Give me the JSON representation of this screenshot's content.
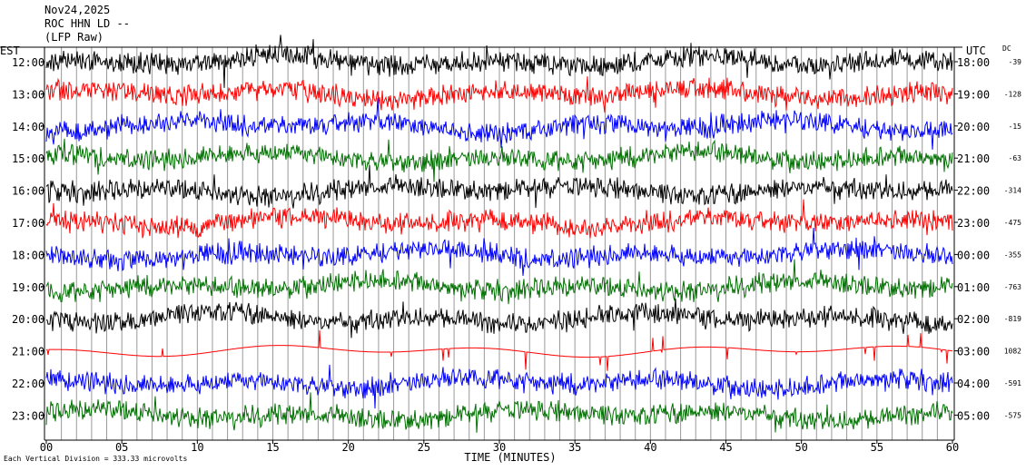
{
  "header": {
    "date": "Nov24,2025",
    "station": "ROC HHN LD --",
    "filter": "(LFP Raw)"
  },
  "left_axis_label": "EST",
  "right_axis_label": "UTC",
  "dc_label": "DC",
  "footer": {
    "note": "Each Vertical Division =  333.33 microvolts",
    "xlabel": "TIME (MINUTES)"
  },
  "colors": {
    "black": "#000000",
    "red": "#ff0000",
    "blue": "#0000ff",
    "green": "#007000"
  },
  "chart_data": {
    "type": "line",
    "title": "",
    "xlabel": "TIME (MINUTES)",
    "ylabel": "",
    "xlim": [
      0,
      60
    ],
    "x_ticks": [
      "00",
      "05",
      "10",
      "15",
      "20",
      "25",
      "30",
      "35",
      "40",
      "45",
      "50",
      "55",
      "60"
    ],
    "series": [
      {
        "local": "12:00",
        "utc": "18:00",
        "dc": "-39",
        "color": "black"
      },
      {
        "local": "13:00",
        "utc": "19:00",
        "dc": "-128",
        "color": "red"
      },
      {
        "local": "14:00",
        "utc": "20:00",
        "dc": "-15",
        "color": "blue"
      },
      {
        "local": "15:00",
        "utc": "21:00",
        "dc": "-63",
        "color": "green"
      },
      {
        "local": "16:00",
        "utc": "22:00",
        "dc": "-314",
        "color": "black"
      },
      {
        "local": "17:00",
        "utc": "23:00",
        "dc": "-475",
        "color": "red"
      },
      {
        "local": "18:00",
        "utc": "00:00",
        "dc": "-355",
        "color": "blue"
      },
      {
        "local": "19:00",
        "utc": "01:00",
        "dc": "-763",
        "color": "green"
      },
      {
        "local": "20:00",
        "utc": "02:00",
        "dc": "-819",
        "color": "black"
      },
      {
        "local": "21:00",
        "utc": "03:00",
        "dc": "1082",
        "color": "red"
      },
      {
        "local": "22:00",
        "utc": "04:00",
        "dc": "-591",
        "color": "blue"
      },
      {
        "local": "23:00",
        "utc": "05:00",
        "dc": "-575",
        "color": "green"
      }
    ]
  }
}
